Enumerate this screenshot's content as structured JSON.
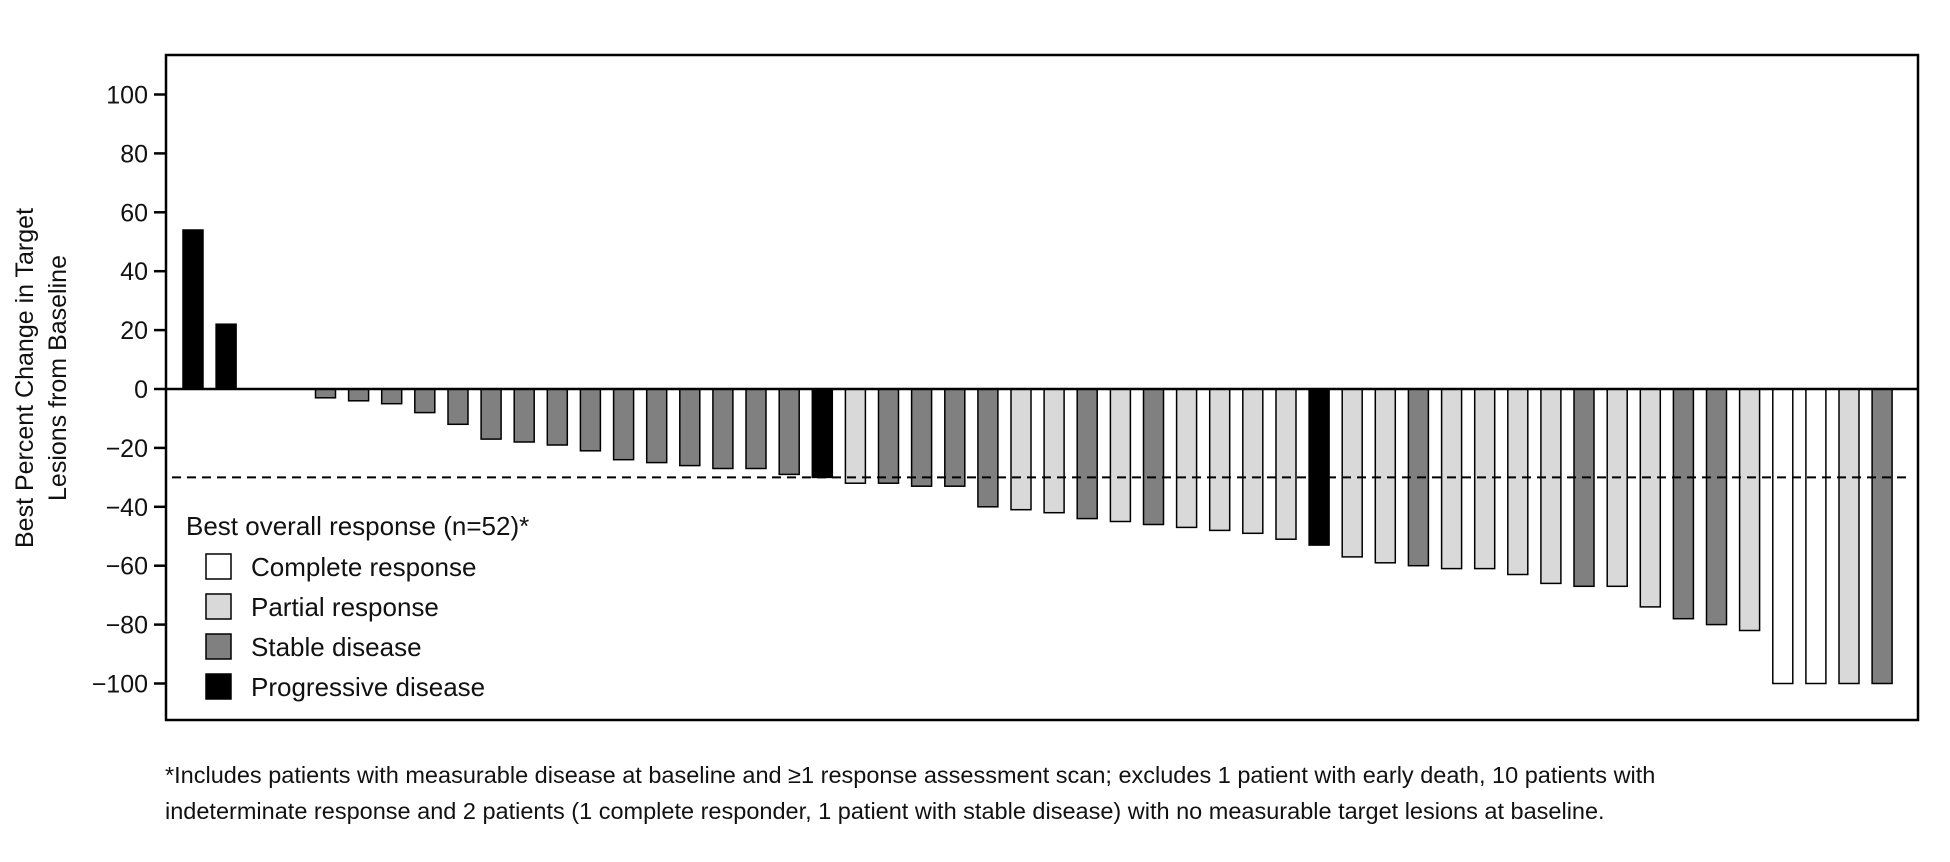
{
  "chart_data": {
    "type": "bar",
    "title": "",
    "xlabel": "",
    "ylabel_lines": [
      "Best Percent Change in Target",
      "Lesions from Baseline"
    ],
    "ylim": [
      -112,
      113
    ],
    "yticks": [
      100,
      80,
      60,
      40,
      20,
      0,
      -20,
      -40,
      -60,
      -80,
      -100
    ],
    "ytick_labels": [
      "100",
      "80",
      "60",
      "40",
      "20",
      "0",
      "−20",
      "−40",
      "−60",
      "−80",
      "−100"
    ],
    "threshold": -30,
    "grid": false,
    "legend_position": "bottom-left",
    "legend": {
      "title": "Best overall response (n=52)*",
      "items": [
        {
          "label": "Complete response",
          "category": "CR"
        },
        {
          "label": "Partial response",
          "category": "PR"
        },
        {
          "label": "Stable disease",
          "category": "SD"
        },
        {
          "label": "Progressive disease",
          "category": "PD"
        }
      ]
    },
    "colors": {
      "CR": "#ffffff",
      "PR": "#d9d9d9",
      "SD": "#808080",
      "PD": "#000000"
    },
    "bars": [
      {
        "value": 54,
        "response": "PD"
      },
      {
        "value": 22,
        "response": "PD"
      },
      {
        "value": 0,
        "response": "SD"
      },
      {
        "value": 0,
        "response": "SD"
      },
      {
        "value": -3,
        "response": "SD"
      },
      {
        "value": -4,
        "response": "SD"
      },
      {
        "value": -5,
        "response": "SD"
      },
      {
        "value": -8,
        "response": "SD"
      },
      {
        "value": -12,
        "response": "SD"
      },
      {
        "value": -17,
        "response": "SD"
      },
      {
        "value": -18,
        "response": "SD"
      },
      {
        "value": -19,
        "response": "SD"
      },
      {
        "value": -21,
        "response": "SD"
      },
      {
        "value": -24,
        "response": "SD"
      },
      {
        "value": -25,
        "response": "SD"
      },
      {
        "value": -26,
        "response": "SD"
      },
      {
        "value": -27,
        "response": "SD"
      },
      {
        "value": -27,
        "response": "SD"
      },
      {
        "value": -29,
        "response": "SD"
      },
      {
        "value": -30,
        "response": "PD"
      },
      {
        "value": -32,
        "response": "PR"
      },
      {
        "value": -32,
        "response": "SD"
      },
      {
        "value": -33,
        "response": "SD"
      },
      {
        "value": -33,
        "response": "SD"
      },
      {
        "value": -40,
        "response": "SD"
      },
      {
        "value": -41,
        "response": "PR"
      },
      {
        "value": -42,
        "response": "PR"
      },
      {
        "value": -44,
        "response": "SD"
      },
      {
        "value": -45,
        "response": "PR"
      },
      {
        "value": -46,
        "response": "SD"
      },
      {
        "value": -47,
        "response": "PR"
      },
      {
        "value": -48,
        "response": "PR"
      },
      {
        "value": -49,
        "response": "PR"
      },
      {
        "value": -51,
        "response": "PR"
      },
      {
        "value": -53,
        "response": "PD"
      },
      {
        "value": -57,
        "response": "PR"
      },
      {
        "value": -59,
        "response": "PR"
      },
      {
        "value": -60,
        "response": "SD"
      },
      {
        "value": -61,
        "response": "PR"
      },
      {
        "value": -61,
        "response": "PR"
      },
      {
        "value": -63,
        "response": "PR"
      },
      {
        "value": -66,
        "response": "PR"
      },
      {
        "value": -67,
        "response": "SD"
      },
      {
        "value": -67,
        "response": "PR"
      },
      {
        "value": -74,
        "response": "PR"
      },
      {
        "value": -78,
        "response": "SD"
      },
      {
        "value": -80,
        "response": "SD"
      },
      {
        "value": -82,
        "response": "PR"
      },
      {
        "value": -100,
        "response": "CR"
      },
      {
        "value": -100,
        "response": "CR"
      },
      {
        "value": -100,
        "response": "PR"
      },
      {
        "value": -100,
        "response": "SD"
      }
    ]
  },
  "footnote": {
    "line1": "*Includes patients with measurable disease at baseline and ≥1 response assessment scan; excludes 1 patient with early death, 10 patients with",
    "line2": "indeterminate response and 2 patients (1 complete responder, 1 patient with stable disease) with no measurable target lesions at baseline."
  }
}
